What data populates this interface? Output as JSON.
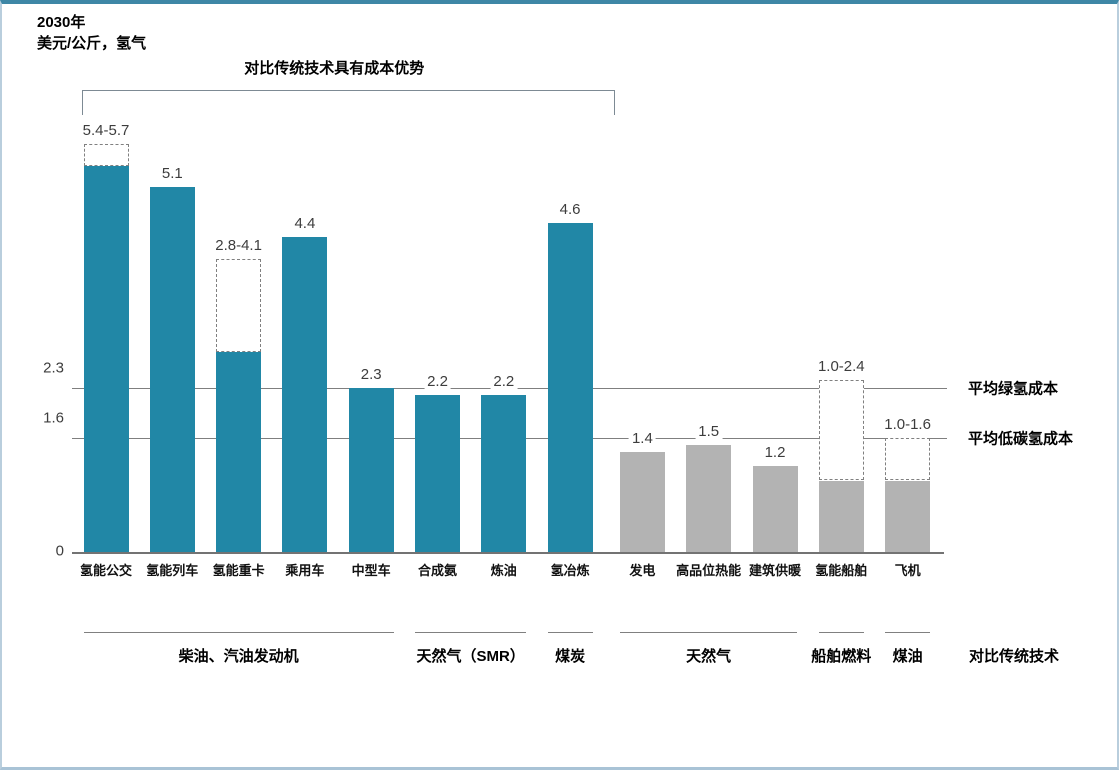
{
  "chart_data": {
    "type": "bar",
    "title": "2030年",
    "unit_label": "美元/公斤，氢气",
    "ylim": [
      0,
      5.7
    ],
    "yticks": [
      0,
      1.6,
      2.3
    ],
    "grid": false,
    "zero_tick_label": "0",
    "colors": {
      "hydrogen_bars": "#2187a6",
      "conventional_bars": "#b3b3b3",
      "range_box_border": "#808080",
      "reference_line": "#7f7f7f"
    },
    "annotation_bracket": {
      "label": "对比传统技术具有成本优势",
      "from": 0,
      "to": 7
    },
    "bars": [
      {
        "category": "氢能公交",
        "value": 5.4,
        "range_max": 5.7,
        "label": "5.4-5.7",
        "color": "#2187a6"
      },
      {
        "category": "氢能列车",
        "value": 5.1,
        "range_max": null,
        "label": "5.1",
        "color": "#2187a6"
      },
      {
        "category": "氢能重卡",
        "value": 2.8,
        "range_max": 4.1,
        "label": "2.8-4.1",
        "color": "#2187a6"
      },
      {
        "category": "乘用车",
        "value": 4.4,
        "range_max": null,
        "label": "4.4",
        "color": "#2187a6"
      },
      {
        "category": "中型车",
        "value": 2.3,
        "range_max": null,
        "label": "2.3",
        "color": "#2187a6"
      },
      {
        "category": "合成氨",
        "value": 2.2,
        "range_max": null,
        "label": "2.2",
        "color": "#2187a6"
      },
      {
        "category": "炼油",
        "value": 2.2,
        "range_max": null,
        "label": "2.2",
        "color": "#2187a6"
      },
      {
        "category": "氢冶炼",
        "value": 4.6,
        "range_max": null,
        "label": "4.6",
        "color": "#2187a6"
      },
      {
        "category": "发电",
        "value": 1.4,
        "range_max": null,
        "label": "1.4",
        "color": "#b3b3b3"
      },
      {
        "category": "高品位热能",
        "value": 1.5,
        "range_max": null,
        "label": "1.5",
        "color": "#b3b3b3"
      },
      {
        "category": "建筑供暖",
        "value": 1.2,
        "range_max": null,
        "label": "1.2",
        "color": "#b3b3b3"
      },
      {
        "category": "氢能船舶",
        "value": 1.0,
        "range_max": 2.4,
        "label": "1.0-2.4",
        "color": "#b3b3b3"
      },
      {
        "category": "飞机",
        "value": 1.0,
        "range_max": 1.6,
        "label": "1.0-1.6",
        "color": "#b3b3b3"
      }
    ],
    "reference_lines": [
      {
        "value": 2.3,
        "tick": "2.3",
        "label": "平均绿氢成本"
      },
      {
        "value": 1.6,
        "tick": "1.6",
        "label": "平均低碳氢成本"
      }
    ],
    "comparison_groups": [
      {
        "label": "柴油、汽油发动机",
        "from": 0,
        "to": 4
      },
      {
        "label": "天然气（SMR）",
        "from": 5,
        "to": 6
      },
      {
        "label": "煤炭",
        "from": 7,
        "to": 7
      },
      {
        "label": "天然气",
        "from": 8,
        "to": 10
      },
      {
        "label": "船舶燃料",
        "from": 11,
        "to": 11
      },
      {
        "label": "煤油",
        "from": 12,
        "to": 12
      }
    ],
    "comparison_row_label": "对比传统技术"
  }
}
